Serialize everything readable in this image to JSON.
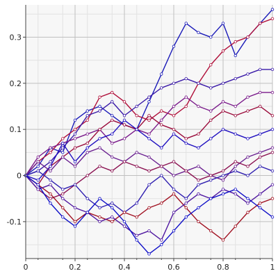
{
  "chart_data": {
    "type": "line",
    "title": "",
    "xlabel": "",
    "ylabel": "",
    "xlim": [
      0,
      1
    ],
    "ylim": [
      -0.18,
      0.37
    ],
    "grid": true,
    "legend": "none",
    "x_ticks": [
      {
        "value": 0,
        "label": "0"
      },
      {
        "value": 0.2,
        "label": "0.2"
      },
      {
        "value": 0.4,
        "label": "0.4"
      },
      {
        "value": 0.6,
        "label": "0.6"
      },
      {
        "value": 0.8,
        "label": "0.8"
      },
      {
        "value": 1,
        "label": "1"
      }
    ],
    "y_ticks": [
      {
        "value": -0.1,
        "label": "-0.1"
      },
      {
        "value": 0,
        "label": "0"
      },
      {
        "value": 0.1,
        "label": "0.1"
      },
      {
        "value": 0.2,
        "label": "0.2"
      },
      {
        "value": 0.3,
        "label": "0.3"
      }
    ],
    "x": [
      0,
      0.05,
      0.1,
      0.15,
      0.2,
      0.25,
      0.3,
      0.35,
      0.4,
      0.45,
      0.5,
      0.55,
      0.6,
      0.65,
      0.7,
      0.75,
      0.8,
      0.85,
      0.9,
      0.95,
      1.0
    ],
    "series": [
      {
        "color": "#1a1ab8",
        "values": [
          0,
          0.02,
          0.06,
          0.05,
          0.12,
          0.14,
          0.15,
          0.13,
          0.11,
          0.1,
          0.16,
          0.22,
          0.28,
          0.33,
          0.31,
          0.3,
          0.33,
          0.26,
          0.3,
          0.33,
          0.36
        ]
      },
      {
        "color": "#b0103a",
        "values": [
          0,
          0.03,
          0.05,
          0.08,
          0.1,
          0.12,
          0.17,
          0.18,
          0.16,
          0.13,
          0.12,
          0.14,
          0.13,
          0.15,
          0.2,
          0.24,
          0.27,
          0.29,
          0.3,
          0.33,
          0.34
        ]
      },
      {
        "color": "#3a1aa8",
        "values": [
          0,
          0.01,
          0.03,
          0.06,
          0.09,
          0.13,
          0.14,
          0.16,
          0.13,
          0.15,
          0.17,
          0.19,
          0.2,
          0.21,
          0.2,
          0.19,
          0.2,
          0.21,
          0.22,
          0.23,
          0.23
        ]
      },
      {
        "color": "#7a1a8a",
        "values": [
          0,
          0.04,
          0.06,
          0.07,
          0.08,
          0.09,
          0.1,
          0.07,
          0.08,
          0.1,
          0.09,
          0.12,
          0.15,
          0.17,
          0.15,
          0.14,
          0.16,
          0.15,
          0.17,
          0.18,
          0.18
        ]
      },
      {
        "color": "#9a0a3a",
        "values": [
          0,
          -0.02,
          0.02,
          0.04,
          0.06,
          0.07,
          0.1,
          0.12,
          0.11,
          0.1,
          0.13,
          0.11,
          0.1,
          0.08,
          0.09,
          0.12,
          0.14,
          0.13,
          0.14,
          0.15,
          0.13
        ]
      },
      {
        "color": "#2010c0",
        "values": [
          0,
          -0.01,
          0.02,
          0.07,
          0.03,
          0.06,
          0.08,
          0.09,
          0.12,
          0.1,
          0.08,
          0.06,
          0.09,
          0.07,
          0.06,
          0.08,
          0.1,
          0.09,
          0.08,
          0.09,
          0.1
        ]
      },
      {
        "color": "#6a2090",
        "values": [
          0,
          0.03,
          0.01,
          0.04,
          0.02,
          0.05,
          0.06,
          0.04,
          0.03,
          0.05,
          0.04,
          0.02,
          0.0,
          0.01,
          0.02,
          0.0,
          -0.01,
          0.02,
          0.04,
          0.05,
          0.06
        ]
      },
      {
        "color": "#8a1050",
        "values": [
          0,
          -0.03,
          -0.05,
          -0.04,
          -0.02,
          0.0,
          0.02,
          0.01,
          0.03,
          0.02,
          0.01,
          0.02,
          0.03,
          0.01,
          -0.01,
          0.0,
          0.01,
          0.03,
          0.02,
          0.04,
          0.05
        ]
      },
      {
        "color": "#3020b0",
        "values": [
          0,
          0.01,
          -0.01,
          -0.03,
          -0.02,
          -0.05,
          -0.07,
          -0.06,
          -0.08,
          -0.06,
          -0.02,
          0.0,
          -0.03,
          -0.05,
          -0.02,
          -0.01,
          0.0,
          0.01,
          0.0,
          0.02,
          0.01
        ]
      },
      {
        "color": "#a01020",
        "values": [
          0,
          -0.02,
          -0.04,
          -0.07,
          -0.1,
          -0.08,
          -0.09,
          -0.1,
          -0.08,
          -0.09,
          -0.07,
          -0.06,
          -0.04,
          -0.07,
          -0.1,
          -0.12,
          -0.14,
          -0.11,
          -0.08,
          -0.06,
          -0.05
        ]
      },
      {
        "color": "#5018a0",
        "values": [
          0,
          -0.03,
          -0.02,
          -0.05,
          -0.07,
          -0.08,
          -0.1,
          -0.09,
          -0.11,
          -0.13,
          -0.12,
          -0.14,
          -0.08,
          -0.06,
          -0.04,
          -0.05,
          -0.03,
          -0.04,
          -0.06,
          -0.04,
          -0.02
        ]
      },
      {
        "color": "#1010c8",
        "values": [
          0,
          -0.02,
          -0.06,
          -0.09,
          -0.11,
          -0.08,
          -0.05,
          -0.07,
          -0.1,
          -0.14,
          -0.17,
          -0.15,
          -0.12,
          -0.09,
          -0.07,
          -0.05,
          -0.04,
          -0.03,
          -0.05,
          -0.07,
          -0.09
        ]
      }
    ]
  }
}
